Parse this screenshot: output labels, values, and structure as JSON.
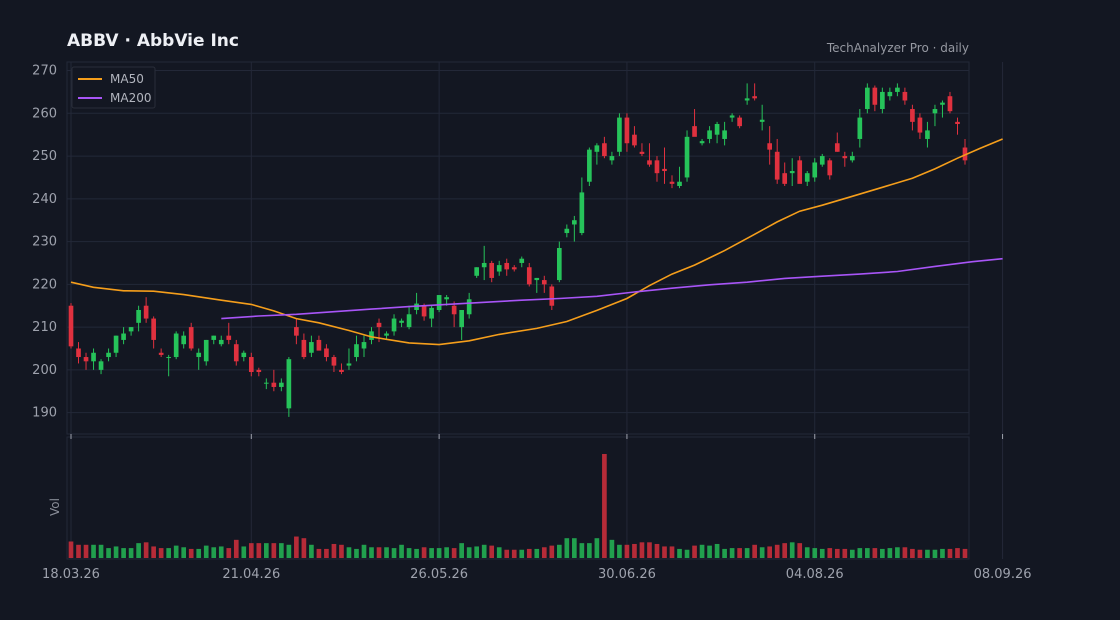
{
  "header": {
    "title": "ABBV  ·  AbbVie Inc",
    "source": "TechAnalyzer Pro · daily"
  },
  "colors": {
    "background": "#131722",
    "up": "#26c35a",
    "down": "#e0313f",
    "ma50": "#f59e1b",
    "ma200": "#a855f7",
    "grid": "#232838"
  },
  "chart_data": {
    "type": "candlestick",
    "title": "ABBV  ·  AbbVie Inc",
    "ylim": [
      185,
      272
    ],
    "yticks": [
      190,
      200,
      210,
      220,
      230,
      240,
      250,
      260,
      270
    ],
    "xticks": [
      {
        "label": "18.03.26",
        "index": 0
      },
      {
        "label": "21.04.26",
        "index": 24
      },
      {
        "label": "26.05.26",
        "index": 49
      },
      {
        "label": "30.06.26",
        "index": 74
      },
      {
        "label": "04.08.26",
        "index": 99
      },
      {
        "label": "08.09.26",
        "index": 124
      }
    ],
    "grid": true,
    "legend": {
      "position": "top-left",
      "entries": [
        "MA50",
        "MA200"
      ]
    },
    "volume_label": "Vol",
    "candles": [
      [
        215,
        215.6,
        205,
        205.5
      ],
      [
        205,
        206.5,
        201.5,
        203
      ],
      [
        203,
        204,
        200,
        202
      ],
      [
        202,
        205,
        200,
        204
      ],
      [
        200,
        202.5,
        199,
        202
      ],
      [
        203,
        205,
        202,
        204
      ],
      [
        204,
        208,
        203,
        208
      ],
      [
        207,
        210,
        206,
        208.5
      ],
      [
        209,
        210,
        208,
        210
      ],
      [
        211,
        215,
        209,
        214
      ],
      [
        215,
        217,
        211,
        212
      ],
      [
        212,
        212.5,
        205,
        207
      ],
      [
        204,
        205,
        203,
        203.5
      ],
      [
        203,
        203.5,
        198.5,
        203
      ],
      [
        203,
        209,
        202.5,
        208.5
      ],
      [
        206,
        209,
        205,
        208
      ],
      [
        210,
        211,
        204.5,
        205
      ],
      [
        203,
        205,
        200,
        204
      ],
      [
        202,
        207,
        201,
        207
      ],
      [
        207,
        208,
        206,
        208
      ],
      [
        206,
        208,
        205.5,
        207
      ],
      [
        208,
        211,
        206,
        207
      ],
      [
        206,
        207,
        201,
        202
      ],
      [
        203,
        204.5,
        202,
        204
      ],
      [
        203,
        204,
        198.5,
        199.5
      ],
      [
        200,
        200.5,
        198.5,
        199.5
      ],
      [
        197,
        198,
        195.5,
        197
      ],
      [
        197,
        200,
        195,
        196
      ],
      [
        196,
        198,
        195,
        197
      ],
      [
        191,
        203,
        189,
        202.5
      ],
      [
        210,
        212,
        206,
        208
      ],
      [
        207,
        208.5,
        202.5,
        203
      ],
      [
        204,
        208,
        203,
        206.5
      ],
      [
        207,
        208,
        205,
        204.5
      ],
      [
        205,
        206,
        202,
        203
      ],
      [
        203,
        203.5,
        199.5,
        201
      ],
      [
        200,
        201.5,
        199,
        199.5
      ],
      [
        201,
        205,
        200,
        201.5
      ],
      [
        203,
        208,
        202,
        206
      ],
      [
        205,
        208,
        203,
        206.5
      ],
      [
        207,
        210,
        206,
        209
      ],
      [
        211,
        212,
        206.5,
        210
      ],
      [
        208,
        209,
        207,
        208.5
      ],
      [
        209,
        213,
        208,
        212
      ],
      [
        211,
        212,
        210,
        211.5
      ],
      [
        210,
        215,
        209.5,
        213
      ],
      [
        214,
        218,
        213,
        215.5
      ],
      [
        215,
        215.5,
        211.5,
        212.5
      ],
      [
        212,
        215,
        210,
        214.5
      ],
      [
        214,
        217.5,
        213.5,
        217.5
      ],
      [
        216.5,
        217.5,
        215,
        217
      ],
      [
        215,
        216,
        210,
        213
      ],
      [
        210,
        214,
        207,
        214
      ],
      [
        213,
        218,
        212,
        216.5
      ],
      [
        222,
        224,
        221.5,
        224
      ],
      [
        224,
        229,
        221,
        225
      ],
      [
        225,
        225.5,
        220.5,
        221.5
      ],
      [
        223,
        225.5,
        222,
        224.5
      ],
      [
        225,
        226,
        222,
        223.5
      ],
      [
        224,
        224.5,
        223,
        223.5
      ],
      [
        225,
        226.5,
        224,
        226
      ],
      [
        224,
        225,
        219.5,
        220
      ],
      [
        221,
        221.5,
        218,
        221.5
      ],
      [
        221,
        222,
        218,
        220
      ],
      [
        219.5,
        220,
        214,
        215
      ],
      [
        221,
        230,
        220.5,
        228.5
      ],
      [
        232,
        234,
        231,
        233
      ],
      [
        234,
        236,
        230,
        235
      ],
      [
        232,
        245,
        231.5,
        241.5
      ],
      [
        244,
        252,
        243,
        251.5
      ],
      [
        251,
        253,
        248,
        252.5
      ],
      [
        253,
        254.5,
        249.5,
        250
      ],
      [
        249,
        251,
        248,
        250
      ],
      [
        251,
        260,
        250,
        259
      ],
      [
        259,
        260,
        251,
        253
      ],
      [
        255,
        257,
        252,
        252.5
      ],
      [
        251,
        253,
        250,
        250.5
      ],
      [
        249,
        253,
        247.5,
        248
      ],
      [
        249,
        250,
        244,
        246
      ],
      [
        247,
        252,
        243.5,
        246.5
      ],
      [
        244,
        245.5,
        242.5,
        243.5
      ],
      [
        243,
        247.5,
        242.5,
        244
      ],
      [
        245,
        256,
        244,
        254.5
      ],
      [
        257,
        261,
        255,
        254.5
      ],
      [
        253,
        254,
        252.5,
        253.5
      ],
      [
        254,
        257,
        253,
        256
      ],
      [
        255,
        258,
        253,
        257.5
      ],
      [
        254,
        258,
        252.5,
        256
      ],
      [
        259,
        260,
        258,
        259.5
      ],
      [
        259,
        259.5,
        256.5,
        257
      ],
      [
        263,
        267,
        262,
        263.5
      ],
      [
        264,
        267,
        263,
        263.5
      ],
      [
        258,
        262,
        256,
        258.5
      ],
      [
        253,
        257,
        248,
        251.5
      ],
      [
        251,
        254,
        243.5,
        244.5
      ],
      [
        246,
        248.5,
        243,
        243.5
      ],
      [
        246,
        249.5,
        243,
        246.5
      ],
      [
        249,
        250,
        244,
        243.5
      ],
      [
        244,
        246.5,
        243,
        246
      ],
      [
        245,
        249.5,
        244,
        248.5
      ],
      [
        248,
        250.5,
        247.5,
        250
      ],
      [
        249,
        249.5,
        244.5,
        245.5
      ],
      [
        253,
        255.5,
        251,
        251
      ],
      [
        250,
        251,
        247.5,
        249.5
      ],
      [
        249,
        251,
        248.5,
        250
      ],
      [
        254,
        261,
        252,
        259
      ],
      [
        261,
        267,
        260,
        266
      ],
      [
        266,
        266.5,
        260.5,
        262
      ],
      [
        261,
        266,
        260,
        265
      ],
      [
        264,
        266,
        263,
        265
      ],
      [
        265,
        267,
        264,
        266
      ],
      [
        265,
        266,
        262,
        263
      ],
      [
        261,
        262,
        256,
        258
      ],
      [
        259,
        260,
        254,
        255.5
      ],
      [
        254,
        258,
        252,
        256
      ],
      [
        260,
        262,
        257,
        261
      ],
      [
        262,
        263,
        259,
        262.5
      ],
      [
        264,
        265,
        260,
        260.5
      ],
      [
        258,
        259,
        255,
        257.5
      ],
      [
        252,
        254,
        248,
        249
      ]
    ],
    "volume": [
      20,
      16,
      16,
      16,
      16,
      12,
      14,
      12,
      12,
      18,
      19,
      14,
      12,
      12,
      15,
      13,
      11,
      11,
      15,
      13,
      14,
      12,
      22,
      14,
      18,
      18,
      18,
      18,
      18,
      16,
      26,
      24,
      16,
      11,
      11,
      17,
      16,
      13,
      11,
      16,
      13,
      13,
      13,
      12,
      16,
      12,
      11,
      13,
      12,
      12,
      13,
      12,
      18,
      13,
      14,
      16,
      15,
      13,
      10,
      10,
      10,
      11,
      11,
      13,
      15,
      16,
      24,
      24,
      18,
      18,
      24,
      126,
      22,
      16,
      16,
      17,
      19,
      19,
      17,
      14,
      14,
      11,
      10,
      15,
      16,
      15,
      17,
      11,
      12,
      12,
      12,
      16,
      13,
      14,
      16,
      18,
      19,
      18,
      13,
      12,
      11,
      12,
      11,
      11,
      10,
      12,
      12,
      12,
      11,
      12,
      13,
      13,
      11,
      10,
      10,
      10,
      11,
      11,
      12,
      11,
      11,
      9,
      8,
      11,
      12
    ],
    "series": [
      {
        "name": "MA50",
        "points": [
          [
            0,
            220.5
          ],
          [
            3,
            219.3
          ],
          [
            7,
            218.5
          ],
          [
            11,
            218.4
          ],
          [
            15,
            217.6
          ],
          [
            20,
            216.3
          ],
          [
            24,
            215.3
          ],
          [
            27,
            213.8
          ],
          [
            30,
            212
          ],
          [
            33,
            211
          ],
          [
            37,
            209.2
          ],
          [
            40,
            207.7
          ],
          [
            45,
            206.3
          ],
          [
            49,
            205.9
          ],
          [
            53,
            206.8
          ],
          [
            57,
            208.3
          ],
          [
            62,
            209.7
          ],
          [
            66,
            211.3
          ],
          [
            70,
            213.9
          ],
          [
            74,
            216.7
          ],
          [
            77,
            219.7
          ],
          [
            80,
            222.4
          ],
          [
            83,
            224.5
          ],
          [
            87,
            227.9
          ],
          [
            91,
            231.7
          ],
          [
            94,
            234.6
          ],
          [
            97,
            237.1
          ],
          [
            100,
            238.5
          ],
          [
            104,
            240.6
          ],
          [
            108,
            242.7
          ],
          [
            112,
            244.8
          ],
          [
            115,
            247
          ],
          [
            118,
            249.5
          ],
          [
            121,
            251.8
          ],
          [
            124,
            254
          ]
        ]
      },
      {
        "name": "MA200",
        "points": [
          [
            20,
            212
          ],
          [
            25,
            212.6
          ],
          [
            30,
            213
          ],
          [
            35,
            213.6
          ],
          [
            40,
            214.2
          ],
          [
            45,
            214.8
          ],
          [
            50,
            215.3
          ],
          [
            55,
            215.8
          ],
          [
            60,
            216.3
          ],
          [
            65,
            216.7
          ],
          [
            70,
            217.2
          ],
          [
            75,
            218.2
          ],
          [
            80,
            219.1
          ],
          [
            85,
            219.9
          ],
          [
            90,
            220.5
          ],
          [
            95,
            221.4
          ],
          [
            100,
            221.9
          ],
          [
            105,
            222.4
          ],
          [
            110,
            223
          ],
          [
            115,
            224.2
          ],
          [
            120,
            225.3
          ],
          [
            124,
            226
          ]
        ]
      }
    ]
  }
}
